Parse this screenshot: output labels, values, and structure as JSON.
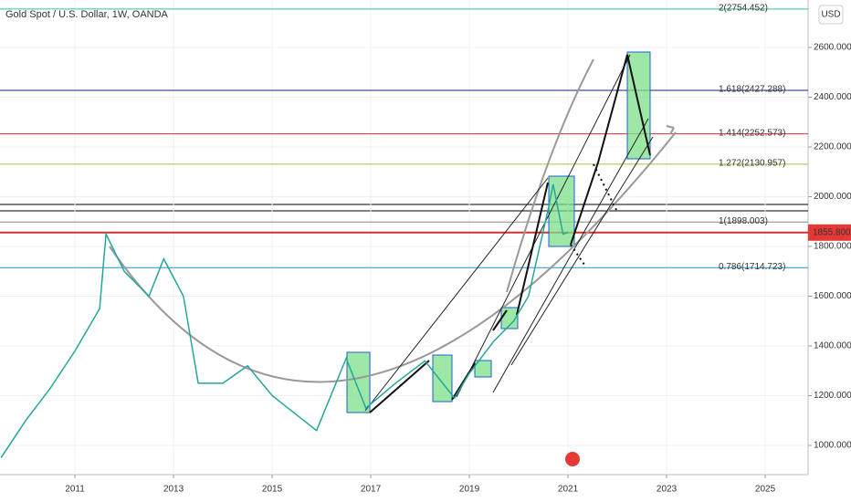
{
  "chart_data": {
    "type": "line",
    "title": "Gold Spot / U.S. Dollar, 1W, OANDA",
    "currency_button": "USD",
    "x": [
      2009.5,
      2010.0,
      2010.5,
      2011.0,
      2011.5,
      2011.63,
      2012.0,
      2012.5,
      2012.8,
      2013.2,
      2013.5,
      2014.0,
      2014.5,
      2015.0,
      2015.9,
      2016.5,
      2016.9,
      2017.5,
      2018.1,
      2018.7,
      2019.0,
      2019.5,
      2019.9,
      2020.2,
      2020.6,
      2020.7,
      2020.9,
      2021.0
    ],
    "series": [
      {
        "color": "#26a69a",
        "values": [
          950,
          1100,
          1230,
          1380,
          1550,
          1850,
          1700,
          1600,
          1750,
          1600,
          1250,
          1250,
          1320,
          1200,
          1060,
          1350,
          1150,
          1250,
          1340,
          1190,
          1290,
          1420,
          1500,
          1600,
          1950,
          2050,
          1850,
          1855.8
        ]
      }
    ],
    "xlim": [
      2009.48,
      2025.87
    ],
    "xticks": [
      2011,
      2013,
      2015,
      2017,
      2019,
      2021,
      2023,
      2025
    ],
    "ylim": [
      882.6,
      2790.8
    ],
    "yticks": [
      {
        "value": 1000,
        "label": "1000.000"
      },
      {
        "value": 1200,
        "label": "1200.000"
      },
      {
        "value": 1400,
        "label": "1400.000"
      },
      {
        "value": 1600,
        "label": "1600.000"
      },
      {
        "value": 1800,
        "label": "1800.000"
      },
      {
        "value": 2000,
        "label": "2000.000"
      },
      {
        "value": 2200,
        "label": "2200.000"
      },
      {
        "value": 2400,
        "label": "2400.000"
      },
      {
        "value": 2600,
        "label": "2600.000"
      }
    ],
    "price_label": {
      "value": 1855.8,
      "label": "1855.800"
    },
    "fib_levels": [
      {
        "value": 2754.452,
        "label": "2(2754.452)",
        "color": "#26c6a0"
      },
      {
        "value": 2427.288,
        "label": "1.618(2427.288)",
        "color": "#1a237e"
      },
      {
        "value": 2252.573,
        "label": "1.414(2252.573)",
        "color": "#d32f2f"
      },
      {
        "value": 2130.957,
        "label": "1.272(2130.957)",
        "color": "#9ccc3a"
      },
      {
        "value": 1898.003,
        "label": "1(1898.003)",
        "color": "#888888"
      },
      {
        "value": 1714.723,
        "label": "0.786(1714.723)",
        "color": "#2196c8"
      }
    ]
  }
}
